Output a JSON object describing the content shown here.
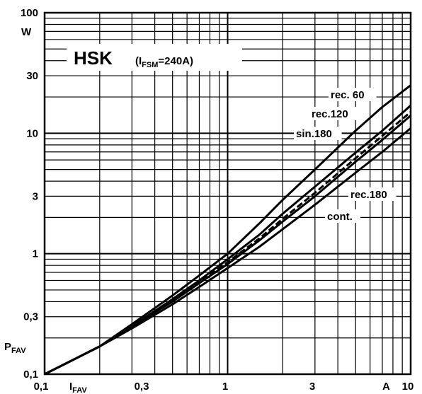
{
  "chart_data": {
    "type": "line",
    "title": "HSK",
    "subtitle_prefix": "(I",
    "subtitle_sub": "FSM",
    "subtitle_suffix": "=240A)",
    "xlabel_main": "I",
    "xlabel_sub": "FAV",
    "ylabel_main": "P",
    "ylabel_sub": "FAV",
    "x_unit": "A",
    "y_unit": "W",
    "x_scale": "log",
    "y_scale": "log",
    "xlim": [
      0.1,
      10
    ],
    "ylim": [
      0.1,
      100
    ],
    "grid": true,
    "x_ticks": [
      "0,1",
      "0,3",
      "1",
      "3",
      "10"
    ],
    "y_ticks": [
      "0,1",
      "0,3",
      "1",
      "3",
      "10",
      "30",
      "100"
    ],
    "series": [
      {
        "name": "rec. 60",
        "x": [
          0.1,
          0.2,
          0.3,
          0.5,
          0.7,
          1,
          1.5,
          2,
          3,
          5,
          7,
          10
        ],
        "y": [
          0.1,
          0.17,
          0.26,
          0.45,
          0.66,
          1.0,
          1.8,
          2.8,
          5.0,
          10.5,
          16.5,
          25
        ]
      },
      {
        "name": "rec.120",
        "x": [
          0.1,
          0.2,
          0.3,
          0.5,
          0.7,
          1,
          1.5,
          2,
          3,
          5,
          7,
          10
        ],
        "y": [
          0.1,
          0.17,
          0.25,
          0.42,
          0.6,
          0.9,
          1.45,
          2.15,
          3.6,
          6.9,
          10.5,
          17
        ]
      },
      {
        "name": "sin.180",
        "x": [
          0.1,
          0.2,
          0.3,
          0.5,
          0.7,
          1,
          1.5,
          2,
          3,
          5,
          7,
          10
        ],
        "y": [
          0.1,
          0.17,
          0.25,
          0.41,
          0.58,
          0.85,
          1.35,
          1.95,
          3.2,
          6.2,
          9.5,
          15
        ]
      },
      {
        "name": "rec.180",
        "x": [
          0.1,
          0.2,
          0.3,
          0.5,
          0.7,
          1,
          1.5,
          2,
          3,
          5,
          7,
          10
        ],
        "y": [
          0.1,
          0.17,
          0.25,
          0.4,
          0.57,
          0.82,
          1.3,
          1.85,
          3.0,
          5.8,
          8.8,
          14
        ]
      },
      {
        "name": "cont.",
        "x": [
          0.1,
          0.2,
          0.3,
          0.5,
          0.7,
          1,
          1.5,
          2,
          3,
          5,
          7,
          10
        ],
        "y": [
          0.1,
          0.17,
          0.24,
          0.38,
          0.53,
          0.76,
          1.15,
          1.6,
          2.55,
          4.7,
          7.0,
          11
        ]
      }
    ]
  }
}
